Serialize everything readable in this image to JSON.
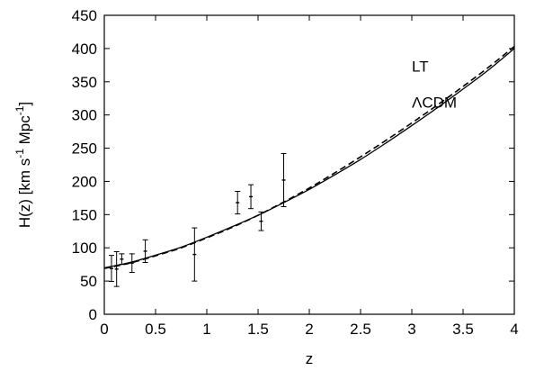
{
  "chart_data": {
    "type": "line",
    "title": "",
    "xlabel": "z",
    "ylabel": {
      "parts": [
        "H(z) [km s",
        "-1",
        " Mpc",
        "-1",
        "]"
      ]
    },
    "xlim": [
      0,
      4
    ],
    "ylim": [
      0,
      450
    ],
    "xticks": [
      "0",
      "0.5",
      "1",
      "1.5",
      "2",
      "2.5",
      "3",
      "3.5",
      "4"
    ],
    "yticks": [
      "0",
      "50",
      "100",
      "150",
      "200",
      "250",
      "300",
      "350",
      "400",
      "450"
    ],
    "grid": false,
    "legend": "none",
    "series": [
      {
        "name": "ΛCDM",
        "style": "solid",
        "color": "#000000",
        "x": [
          0,
          0.25,
          0.5,
          0.75,
          1.0,
          1.25,
          1.5,
          1.75,
          2.0,
          2.25,
          2.5,
          2.75,
          3.0,
          3.25,
          3.5,
          3.75,
          4.0
        ],
        "y": [
          70,
          78,
          89,
          101,
          116,
          132,
          149,
          168,
          188,
          210,
          233,
          258,
          284,
          311,
          339,
          368,
          400
        ]
      },
      {
        "name": "LT",
        "style": "dashed",
        "color": "#000000",
        "x": [
          0,
          0.25,
          0.5,
          0.75,
          1.0,
          1.25,
          1.5,
          1.75,
          2.0,
          2.25,
          2.5,
          2.75,
          3.0,
          3.25,
          3.5,
          3.75,
          4.0
        ],
        "y": [
          69,
          77,
          88,
          100,
          115,
          131,
          149,
          169,
          190,
          213,
          237,
          262,
          288,
          315,
          343,
          372,
          403
        ]
      }
    ],
    "error_bars": {
      "name": "data",
      "x": [
        0.07,
        0.12,
        0.17,
        0.27,
        0.4,
        0.88,
        1.3,
        1.43,
        1.53,
        1.75
      ],
      "y": [
        69,
        68,
        83,
        77,
        95,
        90,
        168,
        177,
        140,
        202
      ],
      "err": [
        19.6,
        26.2,
        8,
        14,
        17,
        40,
        17,
        18,
        14,
        40
      ]
    },
    "annotations": [
      {
        "text": "LT",
        "x": 3.0,
        "y": 365
      },
      {
        "text": "ΛCDM",
        "x": 3.0,
        "y": 311
      }
    ]
  }
}
